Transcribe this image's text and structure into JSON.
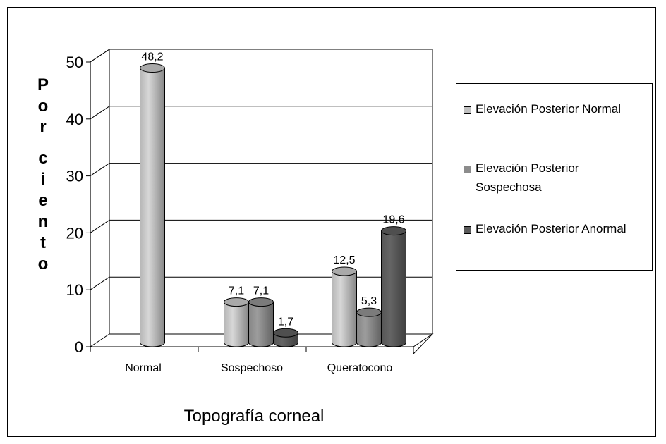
{
  "chart_data": {
    "type": "bar",
    "categories": [
      "Normal",
      "Sospechoso",
      "Queratocono"
    ],
    "series": [
      {
        "name": "Elevación Posterior Normal",
        "values": [
          48.2,
          7.1,
          12.5
        ],
        "labels": [
          "48,2",
          "7,1",
          "12,5"
        ],
        "color": "#c0c0c0"
      },
      {
        "name": "Elevación Posterior Sospechosa",
        "values": [
          null,
          7.1,
          5.3
        ],
        "labels": [
          "",
          "7,1",
          "5,3"
        ],
        "color": "#8c8c8c"
      },
      {
        "name": "Elevación Posterior Anormal",
        "values": [
          null,
          1.7,
          19.6
        ],
        "labels": [
          "",
          "1,7",
          "19,6"
        ],
        "color": "#5a5a5a"
      }
    ],
    "yticks": [
      "0",
      "10",
      "20",
      "30",
      "40",
      "50"
    ],
    "ylim": [
      0,
      50
    ],
    "xlabel": "Topografía corneal",
    "ylabel": "Por ciento",
    "grid": true,
    "legend": "right"
  },
  "legend": {
    "items": [
      {
        "lines": [
          "Elevación Posterior Normal"
        ],
        "color": "#c0c0c0"
      },
      {
        "lines": [
          "Elevación Posterior",
          "Sospechosa"
        ],
        "color": "#8c8c8c"
      },
      {
        "lines": [
          "Elevación Posterior Anormal"
        ],
        "color": "#5a5a5a"
      }
    ]
  }
}
